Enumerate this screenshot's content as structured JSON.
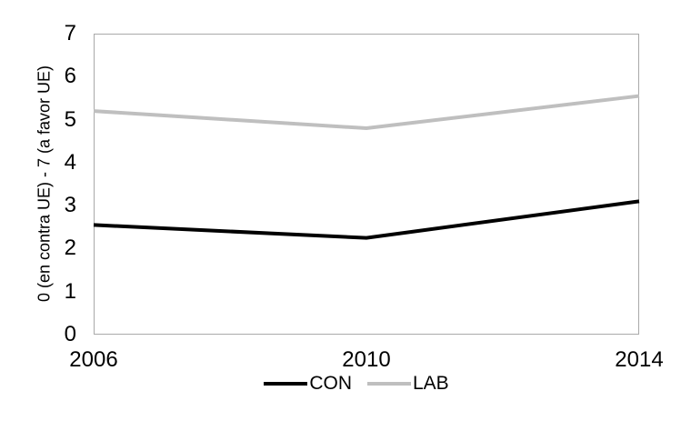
{
  "chart_data": {
    "type": "line",
    "x": [
      "2006",
      "2010",
      "2014"
    ],
    "series": [
      {
        "name": "CON",
        "color": "#000000",
        "values": [
          2.55,
          2.25,
          3.1
        ]
      },
      {
        "name": "LAB",
        "color": "#bfbfbf",
        "values": [
          5.2,
          4.8,
          5.55
        ]
      }
    ],
    "title": "",
    "xlabel": "",
    "ylabel": "0 (en contra UE) - 7 (a favor UE)",
    "ylim": [
      0,
      7
    ],
    "yticks": [
      0,
      1,
      2,
      3,
      4,
      5,
      6,
      7
    ],
    "grid": false,
    "legend_position": "bottom"
  },
  "colors": {
    "background": "#ffffff",
    "plot_border": "#a9a9a9",
    "text": "#000000"
  }
}
